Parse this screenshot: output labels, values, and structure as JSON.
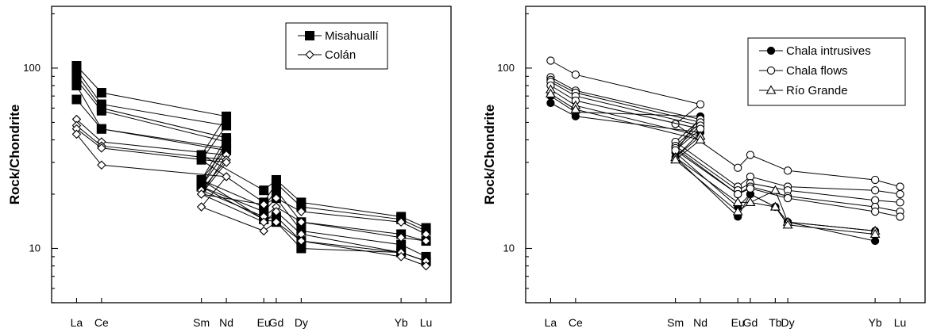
{
  "chart_data": [
    {
      "type": "line",
      "yscale": "log",
      "ylabel": "Rock/Chondrite",
      "ylim": [
        5,
        220
      ],
      "yticks": [
        10,
        100
      ],
      "categories": [
        "La",
        "Ce",
        "Nd",
        "Sm",
        "Eu",
        "Gd",
        "Dy",
        "Yb",
        "Lu"
      ],
      "x_positions": [
        57,
        58,
        63,
        62,
        64.5,
        65,
        66,
        70,
        71
      ],
      "legend": {
        "position": "top-right",
        "entries": [
          {
            "name": "Misahuallí",
            "marker": "square-filled"
          },
          {
            "name": "Colán",
            "marker": "diamond-open"
          }
        ]
      },
      "series": [
        {
          "name": "Misahuallí",
          "values": [
            103,
            73,
            54,
            33,
            21,
            24,
            18,
            15,
            13
          ]
        },
        {
          "name": "Misahuallí",
          "values": [
            98,
            63,
            48,
            31,
            18,
            23,
            17,
            14.5,
            12.5
          ]
        },
        {
          "name": "Misahuallí",
          "values": [
            92,
            60,
            41,
            24,
            17,
            21,
            14,
            12,
            11
          ]
        },
        {
          "name": "Misahuallí",
          "values": [
            86,
            58,
            39,
            22,
            16,
            19,
            12.5,
            10.5,
            9
          ]
        },
        {
          "name": "Misahuallí",
          "values": [
            80,
            46,
            36,
            24,
            14.5,
            15,
            11,
            9.5,
            8.5
          ]
        },
        {
          "name": "Misahuallí",
          "values": [
            67,
            46,
            35,
            22,
            14.5,
            14,
            10,
            9.5,
            8.5
          ]
        },
        {
          "name": "Colán",
          "values": [
            52,
            39,
            33,
            20,
            17.5,
            19,
            16,
            14,
            12
          ]
        },
        {
          "name": "Colán",
          "values": [
            48,
            37,
            31,
            21,
            15,
            17,
            14,
            11.5,
            11
          ]
        },
        {
          "name": "Colán",
          "values": [
            46,
            36,
            30,
            20,
            14,
            16,
            12,
            9.5,
            8.5
          ]
        },
        {
          "name": "Colán",
          "values": [
            43,
            29,
            25,
            17,
            12.5,
            14,
            11,
            9,
            8
          ]
        }
      ]
    },
    {
      "type": "line",
      "yscale": "log",
      "ylabel": "Rock/Chondrite",
      "ylim": [
        5,
        220
      ],
      "yticks": [
        10,
        100
      ],
      "categories": [
        "La",
        "Ce",
        "Nd",
        "Sm",
        "Eu",
        "Gd",
        "Tb",
        "Dy",
        "Yb",
        "Lu"
      ],
      "x_positions": [
        57,
        58,
        63,
        62,
        64.5,
        65,
        66,
        66.5,
        70,
        71
      ],
      "legend": {
        "position": "top-right",
        "entries": [
          {
            "name": "Chala intrusives",
            "marker": "circle-filled"
          },
          {
            "name": "Chala flows",
            "marker": "circle-open"
          },
          {
            "name": "Río Grande",
            "marker": "triangle-open"
          }
        ]
      },
      "series": [
        {
          "name": "Chala intrusives",
          "values": [
            64,
            54,
            44,
            32,
            15,
            20,
            17,
            14,
            11,
            null
          ]
        },
        {
          "name": "Chala intrusives",
          "values": [
            70,
            57,
            54,
            34,
            17,
            20,
            17,
            14,
            12.5,
            null
          ]
        },
        {
          "name": "Chala flows",
          "values": [
            110,
            92,
            63,
            49,
            28,
            33,
            null,
            27,
            24,
            22
          ]
        },
        {
          "name": "Chala flows",
          "values": [
            89,
            75,
            52,
            39,
            22,
            25,
            null,
            22,
            21,
            20
          ]
        },
        {
          "name": "Chala flows",
          "values": [
            86,
            73,
            50,
            37,
            21,
            23,
            null,
            21,
            18.5,
            18
          ]
        },
        {
          "name": "Chala flows",
          "values": [
            84,
            70,
            48,
            36,
            20,
            22,
            null,
            19.5,
            17,
            16
          ]
        },
        {
          "name": "Chala flows",
          "values": [
            80,
            66,
            46,
            35,
            20,
            21.5,
            null,
            19,
            16,
            15
          ]
        },
        {
          "name": "Río Grande",
          "values": [
            76,
            62,
            42,
            32,
            18,
            18,
            21,
            14,
            12.5,
            null
          ]
        },
        {
          "name": "Río Grande",
          "values": [
            72,
            59,
            40,
            31,
            16,
            18,
            17,
            13.5,
            12,
            null
          ]
        }
      ]
    }
  ]
}
